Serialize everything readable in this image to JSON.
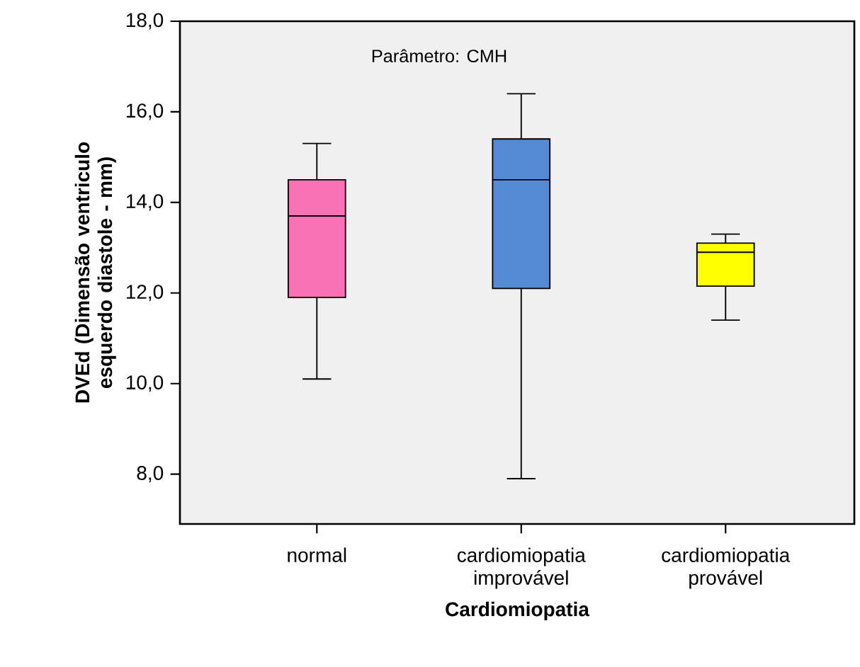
{
  "chart_data": {
    "type": "box",
    "ylabel": "DVEd (Dimensão ventriculo esquerdo diastole - mm)",
    "xlabel": "Cardiomiopatia",
    "annotations": [
      "Parâmetro: CMH"
    ],
    "categories": [
      "normal",
      "cardiomiopatia improvável",
      "cardiomiopatia provável"
    ],
    "colors": [
      "#f872b5",
      "#548bd4",
      "#ffff00"
    ],
    "boxes": [
      {
        "low": 10.1,
        "q1": 11.9,
        "median": 13.7,
        "q3": 14.5,
        "high": 15.3
      },
      {
        "low": 7.9,
        "q1": 12.1,
        "median": 14.5,
        "q3": 15.4,
        "high": 16.4
      },
      {
        "low": 11.4,
        "q1": 12.15,
        "median": 12.9,
        "q3": 13.1,
        "high": 13.3
      }
    ],
    "ylim": [
      6.9,
      18
    ],
    "yticks": [
      {
        "value": 8,
        "label": "8,0"
      },
      {
        "value": 10,
        "label": "10,0"
      },
      {
        "value": 12,
        "label": "12,0"
      },
      {
        "value": 14,
        "label": "14,0"
      },
      {
        "value": 16,
        "label": "16,0"
      },
      {
        "value": 18,
        "label": "18,0"
      }
    ],
    "grid": false
  }
}
